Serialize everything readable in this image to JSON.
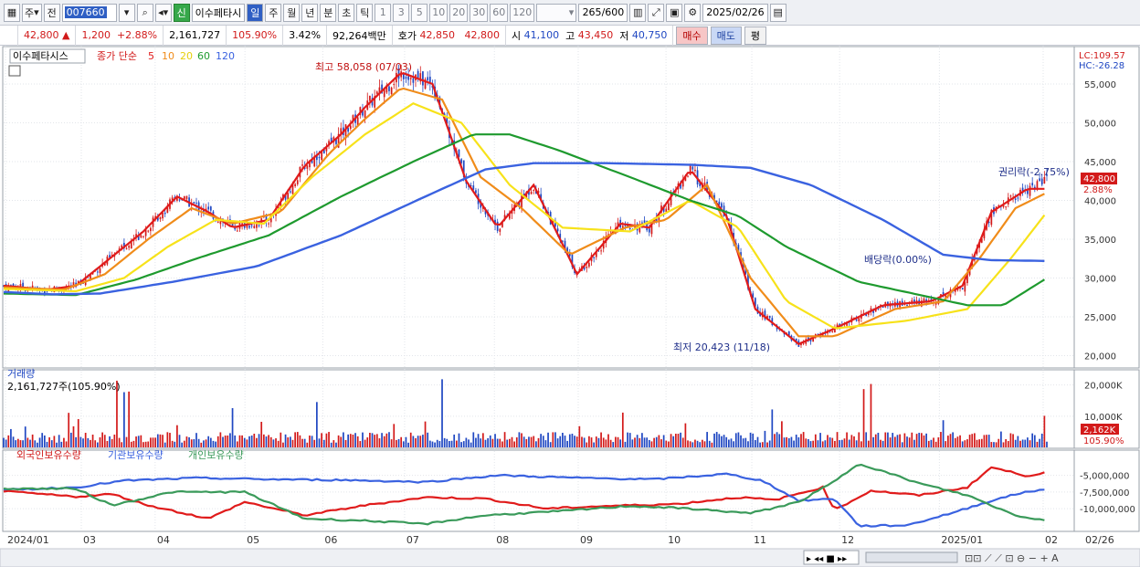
{
  "toolbar": {
    "type_label": "주",
    "prev_label": "전",
    "code": "007660",
    "new_badge": "신",
    "stock_name": "이수페타시",
    "periods": [
      "일",
      "주",
      "월",
      "년",
      "분",
      "초",
      "틱"
    ],
    "active_period": "일",
    "intervals": [
      "1",
      "3",
      "5",
      "10",
      "20",
      "30",
      "60",
      "120"
    ],
    "count": "265",
    "count_max": "/600",
    "date": "2025/02/26"
  },
  "quote": {
    "price": "42,800",
    "change": "1,200",
    "change_pct": "+2.88%",
    "volume": "2,161,727",
    "vol_ratio": "105.90%",
    "turnover": "3.42%",
    "amount": "92,264백만",
    "bid_label": "호가",
    "ask": "42,850",
    "bid": "42,800",
    "open_label": "시",
    "open": "41,100",
    "high_label": "고",
    "high": "43,450",
    "low_label": "저",
    "low": "40,750",
    "buy_label": "매수",
    "sell_label": "매도",
    "eval_label": "평"
  },
  "panel_price": {
    "stock_label": "이수페타시스",
    "ma_title": "종가 단순",
    "ma_periods": [
      "5",
      "10",
      "20",
      "60",
      "120"
    ],
    "lc_label": "LC:109.57",
    "hc_label": "HC:-26.28",
    "high_note": "최고 58,058 (07/03)",
    "low_note": "최저 20,423 (11/18)",
    "div_note": "배당락(0.00%)",
    "rights_note": "권리락(-2.75%)",
    "price_tag": "42,800",
    "pct_tag": "2.88%",
    "yticks": [
      "55,000",
      "50,000",
      "45,000",
      "40,000",
      "35,000",
      "30,000",
      "25,000",
      "20,000"
    ]
  },
  "panel_volume": {
    "title": "거래량",
    "value": "2,161,727주(105.90%)",
    "yticks": [
      "20,000K",
      "10,000K"
    ],
    "vol_tag": "2,162K",
    "pct_tag": "105.90%"
  },
  "panel_holdings": {
    "legend": [
      "외국인보유수량",
      "기관보유수량",
      "개인보유수량"
    ],
    "yticks": [
      "-5,000,000",
      "-7,500,000",
      "-10,000,000"
    ]
  },
  "xaxis": {
    "labels": [
      "2024/01",
      "03",
      "04",
      "05",
      "06",
      "07",
      "08",
      "09",
      "10",
      "11",
      "12",
      "2025/01",
      "02",
      "02/26"
    ]
  },
  "colors": {
    "ma5": "#e01b1b",
    "ma10": "#f08c1a",
    "ma20": "#f7e21a",
    "ma60": "#1e9a2e",
    "ma120": "#3a62e0",
    "up": "#d31a1a",
    "down": "#1f47c2",
    "foreign": "#e01b1b",
    "inst": "#3a62e0",
    "retail": "#3a9a5a"
  },
  "chart_data": {
    "type": "line",
    "title": "이수페타시스",
    "series": [
      {
        "name": "종가 단순 5",
        "anchors": [
          [
            0,
            29000
          ],
          [
            18,
            28500
          ],
          [
            30,
            29000
          ],
          [
            40,
            31500
          ],
          [
            58,
            36000
          ],
          [
            72,
            40500
          ],
          [
            85,
            38500
          ],
          [
            95,
            36500
          ],
          [
            110,
            37500
          ],
          [
            125,
            44500
          ],
          [
            140,
            48500
          ],
          [
            150,
            52000
          ],
          [
            165,
            56500
          ],
          [
            178,
            55000
          ],
          [
            192,
            42500
          ],
          [
            205,
            36500
          ],
          [
            220,
            42000
          ],
          [
            238,
            30500
          ],
          [
            256,
            37000
          ],
          [
            268,
            36500
          ],
          [
            285,
            44000
          ],
          [
            300,
            38000
          ],
          [
            312,
            26000
          ],
          [
            330,
            21500
          ],
          [
            345,
            23500
          ],
          [
            365,
            26500
          ],
          [
            385,
            27000
          ],
          [
            398,
            29000
          ],
          [
            410,
            38500
          ],
          [
            425,
            41500
          ],
          [
            433,
            41500
          ]
        ]
      },
      {
        "name": "종가 단순 10",
        "anchors": [
          [
            0,
            28800
          ],
          [
            25,
            28500
          ],
          [
            42,
            30500
          ],
          [
            60,
            35000
          ],
          [
            78,
            39000
          ],
          [
            95,
            37000
          ],
          [
            115,
            38500
          ],
          [
            135,
            46000
          ],
          [
            150,
            50500
          ],
          [
            165,
            54500
          ],
          [
            182,
            53000
          ],
          [
            198,
            43000
          ],
          [
            215,
            39000
          ],
          [
            235,
            33000
          ],
          [
            258,
            36500
          ],
          [
            275,
            37500
          ],
          [
            292,
            42000
          ],
          [
            310,
            30000
          ],
          [
            330,
            22500
          ],
          [
            345,
            22500
          ],
          [
            370,
            26000
          ],
          [
            390,
            27000
          ],
          [
            405,
            32500
          ],
          [
            420,
            39000
          ],
          [
            433,
            41000
          ]
        ]
      },
      {
        "name": "종가 단순 20",
        "anchors": [
          [
            0,
            28600
          ],
          [
            30,
            28300
          ],
          [
            50,
            30000
          ],
          [
            68,
            34000
          ],
          [
            88,
            37500
          ],
          [
            108,
            37000
          ],
          [
            128,
            43000
          ],
          [
            150,
            48500
          ],
          [
            170,
            52500
          ],
          [
            190,
            50000
          ],
          [
            210,
            42000
          ],
          [
            232,
            36500
          ],
          [
            260,
            36000
          ],
          [
            285,
            40000
          ],
          [
            305,
            36500
          ],
          [
            325,
            27000
          ],
          [
            345,
            23500
          ],
          [
            375,
            24500
          ],
          [
            400,
            26000
          ],
          [
            418,
            32500
          ],
          [
            433,
            38500
          ]
        ]
      },
      {
        "name": "종가 단순 60",
        "anchors": [
          [
            0,
            28000
          ],
          [
            30,
            27800
          ],
          [
            55,
            29800
          ],
          [
            80,
            32500
          ],
          [
            110,
            35500
          ],
          [
            140,
            40500
          ],
          [
            170,
            45000
          ],
          [
            195,
            48500
          ],
          [
            210,
            48500
          ],
          [
            230,
            46500
          ],
          [
            260,
            43000
          ],
          [
            285,
            40000
          ],
          [
            305,
            38000
          ],
          [
            325,
            34000
          ],
          [
            355,
            29500
          ],
          [
            385,
            27500
          ],
          [
            400,
            26500
          ],
          [
            415,
            26500
          ],
          [
            433,
            30000
          ]
        ]
      },
      {
        "name": "종가 단순 120",
        "anchors": [
          [
            0,
            28200
          ],
          [
            20,
            27900
          ],
          [
            40,
            28000
          ],
          [
            70,
            29500
          ],
          [
            105,
            31500
          ],
          [
            140,
            35500
          ],
          [
            175,
            40500
          ],
          [
            200,
            44000
          ],
          [
            220,
            44800
          ],
          [
            250,
            44800
          ],
          [
            285,
            44600
          ],
          [
            310,
            44200
          ],
          [
            335,
            42000
          ],
          [
            365,
            37500
          ],
          [
            390,
            33000
          ],
          [
            410,
            32300
          ],
          [
            433,
            32200
          ]
        ]
      }
    ],
    "candles_close_path": [
      [
        0,
        29000
      ],
      [
        18,
        28500
      ],
      [
        30,
        29000
      ],
      [
        40,
        31500
      ],
      [
        58,
        36000
      ],
      [
        72,
        40500
      ],
      [
        85,
        38500
      ],
      [
        95,
        36500
      ],
      [
        110,
        37500
      ],
      [
        125,
        44500
      ],
      [
        140,
        48500
      ],
      [
        150,
        52000
      ],
      [
        165,
        56500
      ],
      [
        178,
        55000
      ],
      [
        192,
        42500
      ],
      [
        205,
        36500
      ],
      [
        220,
        42000
      ],
      [
        238,
        30500
      ],
      [
        256,
        37000
      ],
      [
        268,
        36500
      ],
      [
        285,
        44000
      ],
      [
        300,
        38000
      ],
      [
        312,
        26000
      ],
      [
        330,
        21500
      ],
      [
        345,
        23500
      ],
      [
        365,
        26500
      ],
      [
        385,
        27000
      ],
      [
        398,
        29000
      ],
      [
        410,
        38500
      ],
      [
        425,
        41500
      ],
      [
        433,
        42800
      ]
    ],
    "holdings": {
      "foreign": [
        [
          0,
          -7400000
        ],
        [
          30,
          -8200000
        ],
        [
          45,
          -7800000
        ],
        [
          60,
          -9500000
        ],
        [
          85,
          -11500000
        ],
        [
          100,
          -9000000
        ],
        [
          125,
          -11000000
        ],
        [
          150,
          -9500000
        ],
        [
          175,
          -8300000
        ],
        [
          200,
          -8500000
        ],
        [
          225,
          -10000000
        ],
        [
          250,
          -9600000
        ],
        [
          280,
          -9300000
        ],
        [
          305,
          -8300000
        ],
        [
          320,
          -8700000
        ],
        [
          340,
          -6800000
        ],
        [
          345,
          -10200000
        ],
        [
          360,
          -7300000
        ],
        [
          380,
          -8000000
        ],
        [
          400,
          -6800000
        ],
        [
          410,
          -3800000
        ],
        [
          425,
          -5100000
        ],
        [
          433,
          -4500000
        ]
      ],
      "institution": [
        [
          0,
          -7200000
        ],
        [
          30,
          -6800000
        ],
        [
          50,
          -5800000
        ],
        [
          80,
          -5400000
        ],
        [
          110,
          -5600000
        ],
        [
          140,
          -5700000
        ],
        [
          175,
          -6000000
        ],
        [
          205,
          -5000000
        ],
        [
          240,
          -5400000
        ],
        [
          270,
          -5600000
        ],
        [
          300,
          -4800000
        ],
        [
          315,
          -5800000
        ],
        [
          330,
          -8800000
        ],
        [
          345,
          -8500000
        ],
        [
          355,
          -12600000
        ],
        [
          375,
          -12500000
        ],
        [
          395,
          -10500000
        ],
        [
          410,
          -8800000
        ],
        [
          425,
          -7400000
        ],
        [
          433,
          -7200000
        ]
      ],
      "retail": [
        [
          0,
          -7000000
        ],
        [
          30,
          -7000000
        ],
        [
          45,
          -9500000
        ],
        [
          70,
          -7500000
        ],
        [
          100,
          -7500000
        ],
        [
          125,
          -11500000
        ],
        [
          150,
          -11800000
        ],
        [
          175,
          -12300000
        ],
        [
          200,
          -11000000
        ],
        [
          230,
          -10400000
        ],
        [
          260,
          -9600000
        ],
        [
          285,
          -10000000
        ],
        [
          310,
          -10700000
        ],
        [
          330,
          -9000000
        ],
        [
          345,
          -5900000
        ],
        [
          355,
          -3200000
        ],
        [
          380,
          -6200000
        ],
        [
          400,
          -8000000
        ],
        [
          420,
          -11000000
        ],
        [
          433,
          -11800000
        ]
      ]
    },
    "ylim_price": [
      19000,
      59000
    ],
    "ylim_volume": [
      0,
      24000
    ],
    "ylim_holdings": [
      -13000000,
      -3000000
    ],
    "n_bars": 434
  }
}
